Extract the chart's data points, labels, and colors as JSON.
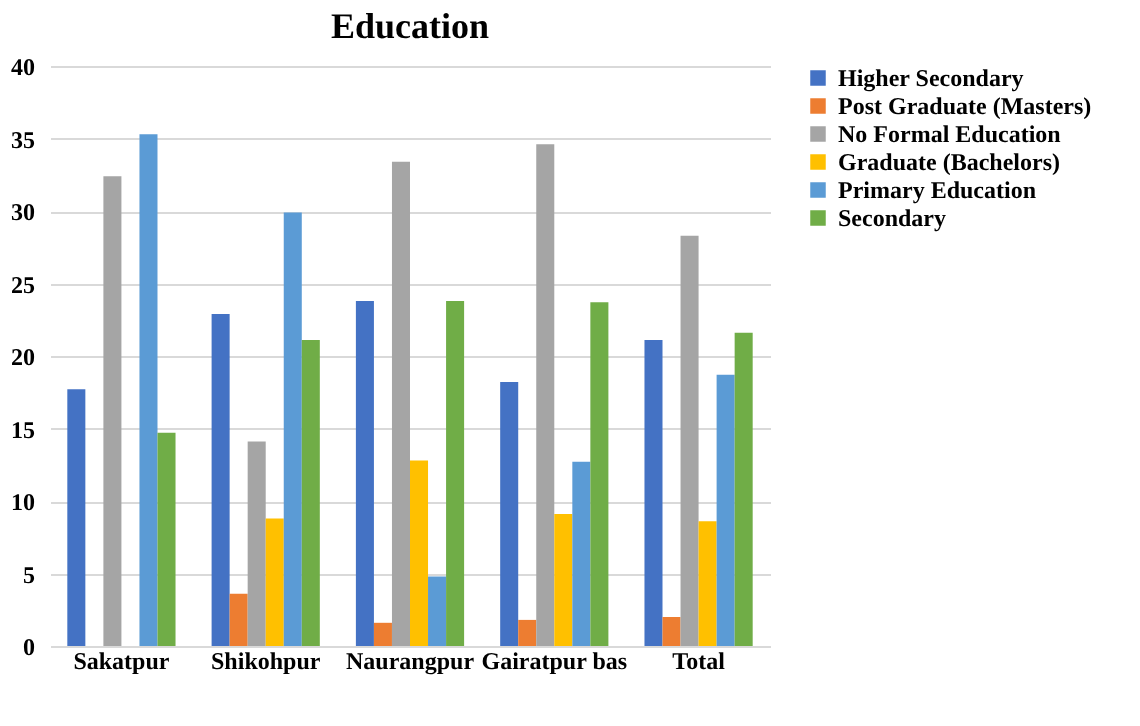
{
  "chart_data": {
    "type": "bar",
    "title": "Education",
    "categories": [
      "Sakatpur",
      "Shikohpur",
      "Naurangpur",
      "Gairatpur bas",
      "Total"
    ],
    "series": [
      {
        "name": "Higher Secondary",
        "color": "#4472c4",
        "values": [
          17.7,
          22.9,
          23.8,
          18.2,
          21.1
        ]
      },
      {
        "name": "Post Graduate (Masters)",
        "color": "#ed7d31",
        "values": [
          0,
          3.6,
          1.6,
          1.8,
          2.0
        ]
      },
      {
        "name": "No Formal Education",
        "color": "#a5a5a5",
        "values": [
          32.4,
          14.1,
          33.4,
          34.6,
          28.3
        ]
      },
      {
        "name": "Graduate (Bachelors)",
        "color": "#ffc000",
        "values": [
          0,
          8.8,
          12.8,
          9.1,
          8.6
        ]
      },
      {
        "name": "Primary Education",
        "color": "#5b9bd5",
        "values": [
          35.3,
          29.9,
          4.8,
          12.7,
          18.7
        ]
      },
      {
        "name": "Secondary",
        "color": "#70ad47",
        "values": [
          14.7,
          21.1,
          23.8,
          23.7,
          21.6
        ]
      }
    ],
    "ylim": [
      0,
      40
    ],
    "yticks": [
      0,
      5,
      10,
      15,
      20,
      25,
      30,
      35,
      40
    ],
    "grid": "y",
    "legend": "right"
  }
}
